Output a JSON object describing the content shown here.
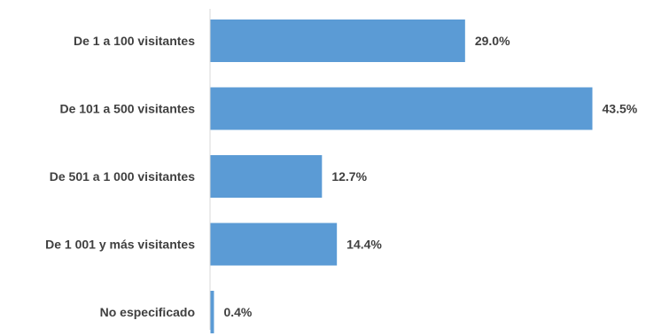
{
  "chart_data": {
    "type": "bar",
    "orientation": "horizontal",
    "categories": [
      "De 1 a 100 visitantes",
      "De 101 a 500 visitantes",
      "De 501 a 1 000 visitantes",
      "De 1 001 y más visitantes",
      "No especificado"
    ],
    "values": [
      29.0,
      43.5,
      12.7,
      14.4,
      0.4
    ],
    "value_labels": [
      "29.0%",
      "43.5%",
      "12.7%",
      "14.4%",
      "0.4%"
    ],
    "unit": "%",
    "xlim": [
      0,
      43.5
    ],
    "grid": false,
    "legend": "none",
    "colors": {
      "bar": "#5b9bd5",
      "axis": "#d9d9d9",
      "text": "#404040"
    }
  }
}
